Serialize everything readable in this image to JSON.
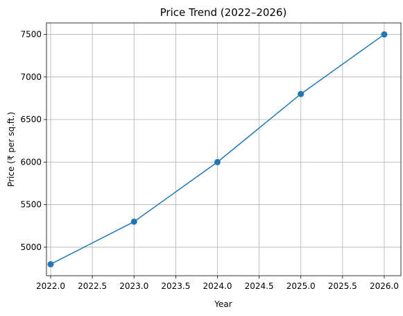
{
  "chart_data": {
    "type": "line",
    "title": "Price Trend (2022–2026)",
    "xlabel": "Year",
    "ylabel": "Price (₹ per sq.ft.)",
    "x": [
      2022,
      2023,
      2024,
      2025,
      2026
    ],
    "series": [
      {
        "values": [
          4800,
          5300,
          6000,
          6800,
          7500
        ],
        "color": "#1f77b4",
        "marker": "circle"
      }
    ],
    "xlim": [
      2021.95,
      2026.2
    ],
    "ylim": [
      4665,
      7635
    ],
    "xticks": [
      2022.0,
      2022.5,
      2023.0,
      2023.5,
      2024.0,
      2024.5,
      2025.0,
      2025.5,
      2026.0
    ],
    "xtick_labels": [
      "2022.0",
      "2022.5",
      "2023.0",
      "2023.5",
      "2024.0",
      "2024.5",
      "2025.0",
      "2025.5",
      "2026.0"
    ],
    "yticks": [
      5000,
      5500,
      6000,
      6500,
      7000,
      7500
    ],
    "ytick_labels": [
      "5000",
      "5500",
      "6000",
      "6500",
      "7000",
      "7500"
    ],
    "grid": true,
    "legend": false
  }
}
